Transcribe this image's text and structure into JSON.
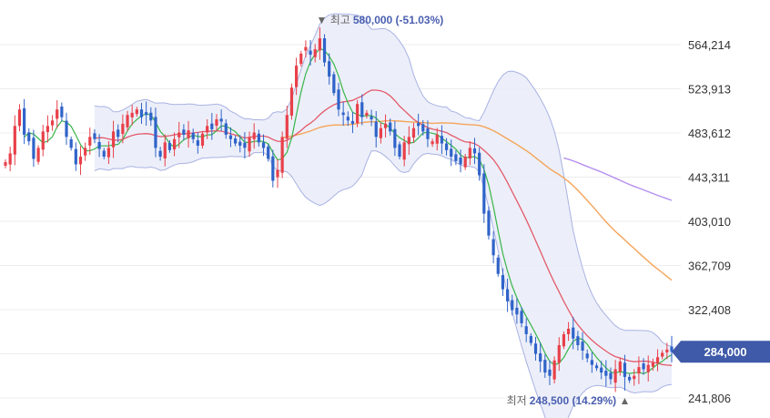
{
  "chart_data": {
    "type": "candlestick",
    "y_axis": {
      "ticks": [
        "564,214",
        "523,913",
        "483,612",
        "443,311",
        "403,010",
        "362,709",
        "322,408",
        "241,806"
      ],
      "tick_values": [
        564214,
        523913,
        483612,
        443311,
        403010,
        362709,
        322408,
        241806
      ],
      "range": [
        232000,
        594000
      ],
      "position": "right",
      "grid": true
    },
    "annotations": {
      "high": {
        "label": "최고",
        "value": "580,000 (-51.03%)",
        "price": 580000,
        "index": 67
      },
      "low": {
        "label": "최저",
        "value": "248,500 (14.29%)",
        "price": 248500,
        "index": 132
      }
    },
    "last_price": {
      "label": "284,000",
      "value": 284000
    },
    "colors": {
      "up": "#e8404a",
      "down": "#2f63c9",
      "ma5": "#39b54a",
      "ma20": "#e45a6a",
      "ma60": "#f5a45a",
      "ma120": "#b48ef0",
      "band_fill": "#e9ecf8",
      "band_line": "#a9b2e3",
      "grid": "#ececec",
      "last_badge": "#3f5aa8"
    },
    "candle_count": 143,
    "closes": [
      457000,
      465000,
      490000,
      505000,
      482000,
      476000,
      460000,
      470000,
      485000,
      490000,
      495000,
      505000,
      498000,
      480000,
      470000,
      455000,
      462000,
      470000,
      480000,
      478000,
      469000,
      462000,
      470000,
      485000,
      480000,
      492000,
      500000,
      502000,
      505000,
      498000,
      500000,
      495000,
      470000,
      462000,
      475000,
      468000,
      478000,
      484000,
      482000,
      486000,
      478000,
      472000,
      483000,
      490000,
      487000,
      496000,
      494000,
      482000,
      478000,
      474000,
      472000,
      470000,
      480000,
      484000,
      475000,
      470000,
      460000,
      440000,
      450000,
      480000,
      500000,
      525000,
      545000,
      556000,
      562000,
      555000,
      560000,
      570000,
      548000,
      535000,
      520000,
      505000,
      500000,
      495000,
      492000,
      510000,
      498000,
      502000,
      496000,
      480000,
      488000,
      492000,
      485000,
      470000,
      462000,
      475000,
      480000,
      488000,
      490000,
      485000,
      478000,
      476000,
      482000,
      474000,
      468000,
      462000,
      458000,
      455000,
      462000,
      470000,
      465000,
      445000,
      410000,
      390000,
      372000,
      355000,
      341000,
      330000,
      322000,
      318000,
      310000,
      300000,
      292000,
      282000,
      275000,
      265000,
      262000,
      276000,
      290000,
      300000,
      305000,
      296000,
      290000,
      285000,
      278000,
      272000,
      269000,
      265000,
      262000,
      259000,
      268000,
      275000,
      261000,
      258000,
      262000,
      270000,
      268000,
      272000,
      274000,
      279000,
      283000,
      286000,
      284000
    ]
  }
}
